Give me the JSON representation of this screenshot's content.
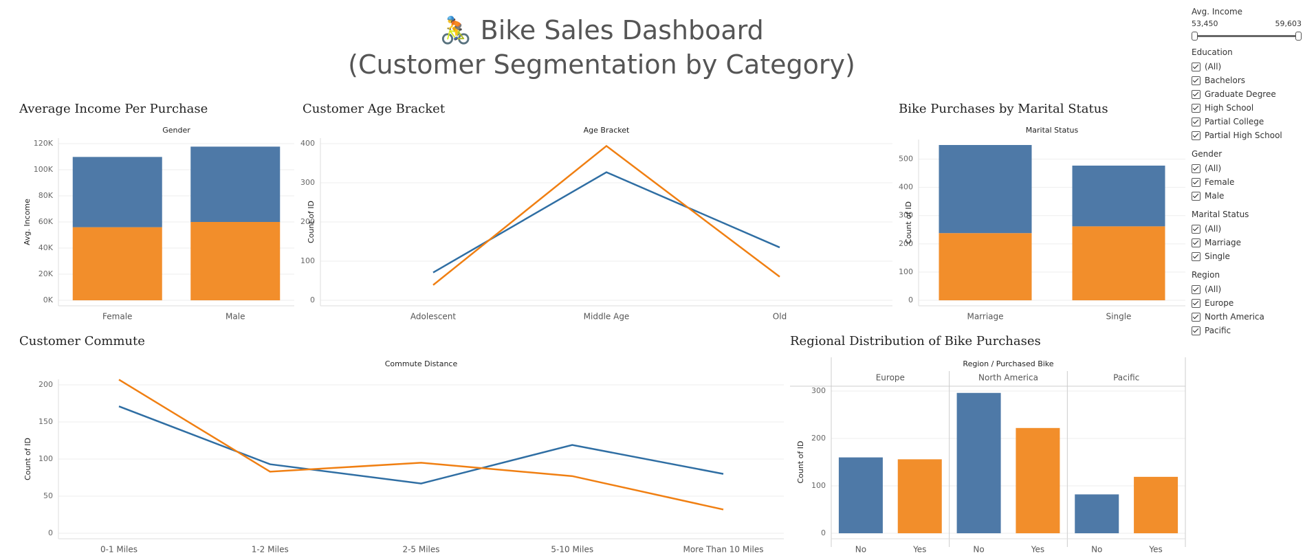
{
  "header": {
    "icon": "bicycle-rider-icon",
    "title": "🚴 Bike Sales Dashboard",
    "subtitle": "(Customer Segmentation by Category)"
  },
  "colors": {
    "blue": "#4e79a7",
    "orange": "#f28e2b",
    "line_blue": "#2f6ea3",
    "line_orange": "#f07f12"
  },
  "panels": {
    "income": "Average Income Per Purchase",
    "age": "Customer Age Bracket",
    "marital": "Bike Purchases by Marital Status",
    "commute": "Customer Commute",
    "region": "Regional Distribution of Bike Purchases"
  },
  "filters": {
    "income": {
      "title": "Avg. Income",
      "min": "53,450",
      "max": "59,603"
    },
    "education": {
      "title": "Education",
      "items": [
        "(All)",
        "Bachelors",
        "Graduate Degree",
        "High School",
        "Partial College",
        "Partial High School"
      ]
    },
    "gender": {
      "title": "Gender",
      "items": [
        "(All)",
        "Female",
        "Male"
      ]
    },
    "marital": {
      "title": "Marital Status",
      "items": [
        "(All)",
        "Marriage",
        "Single"
      ]
    },
    "region": {
      "title": "Region",
      "items": [
        "(All)",
        "Europe",
        "North America",
        "Pacific"
      ]
    }
  },
  "chart_data": [
    {
      "id": "income",
      "type": "bar",
      "header": "Gender",
      "ylabel": "Avg. Income",
      "categories": [
        "Female",
        "Male"
      ],
      "series": [
        {
          "values": [
            56000,
            60000
          ]
        },
        {
          "values": [
            53800,
            57700
          ]
        }
      ],
      "ylim": [
        0,
        120000
      ],
      "yticks": [
        0,
        20000,
        40000,
        60000,
        80000,
        100000,
        120000
      ],
      "ytick_labels": [
        "0K",
        "20K",
        "40K",
        "60K",
        "80K",
        "100K",
        "120K"
      ]
    },
    {
      "id": "age",
      "type": "line",
      "header": "Age Bracket",
      "ylabel": "Count of ID",
      "x": [
        "Adolescent",
        "Middle Age",
        "Old"
      ],
      "series": [
        {
          "values": [
            71,
            327,
            135
          ]
        },
        {
          "values": [
            39,
            394,
            60
          ]
        }
      ],
      "ylim": [
        0,
        400
      ],
      "yticks": [
        0,
        100,
        200,
        300,
        400
      ]
    },
    {
      "id": "marital",
      "type": "bar",
      "header": "Marital Status",
      "ylabel": "Count of ID",
      "categories": [
        "Marriage",
        "Single"
      ],
      "series": [
        {
          "values": [
            238,
            262
          ]
        },
        {
          "values": [
            312,
            215
          ]
        }
      ],
      "ylim": [
        0,
        550
      ],
      "yticks": [
        0,
        100,
        200,
        300,
        400,
        500
      ]
    },
    {
      "id": "commute",
      "type": "line",
      "header": "Commute Distance",
      "ylabel": "Count of ID",
      "x": [
        "0-1 Miles",
        "1-2 Miles",
        "2-5 Miles",
        "5-10 Miles",
        "More Than 10 Miles"
      ],
      "series": [
        {
          "values": [
            171,
            93,
            67,
            119,
            80
          ]
        },
        {
          "values": [
            207,
            83,
            95,
            77,
            32
          ]
        }
      ],
      "ylim": [
        0,
        200
      ],
      "yticks": [
        0,
        50,
        100,
        150,
        200
      ]
    },
    {
      "id": "region",
      "type": "bar",
      "header": "Region / Purchased Bike",
      "ylabel": "Count of ID",
      "groups": [
        "Europe",
        "North America",
        "Pacific"
      ],
      "categories": [
        "No",
        "Yes"
      ],
      "values": [
        [
          160,
          156
        ],
        [
          296,
          222
        ],
        [
          82,
          119
        ]
      ],
      "ylim": [
        0,
        300
      ],
      "yticks": [
        0,
        100,
        200,
        300
      ]
    }
  ]
}
